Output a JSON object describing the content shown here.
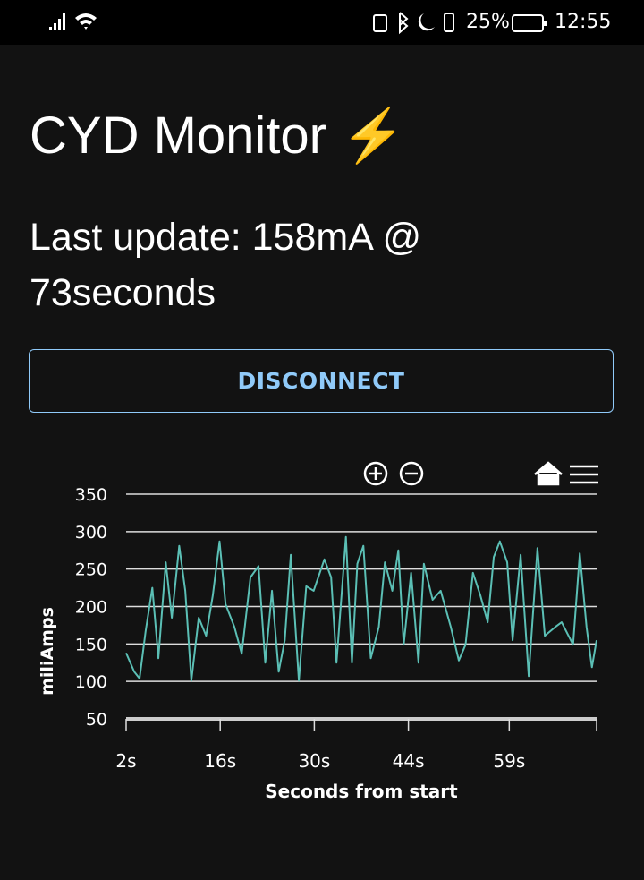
{
  "status_bar": {
    "battery": "25%",
    "time": "12:55"
  },
  "header": {
    "title": "CYD Monitor ⚡",
    "status": "Last update: 158mA @ 73seconds"
  },
  "button": {
    "label": "DISCONNECT"
  },
  "chart_data": {
    "type": "line",
    "xlabel": "Seconds from start",
    "ylabel": "miliAmps",
    "xlim": [
      2,
      72
    ],
    "ylim": [
      50,
      350
    ],
    "xticks": [
      {
        "value": 2,
        "label": "2s"
      },
      {
        "value": 16,
        "label": "16s"
      },
      {
        "value": 30,
        "label": "30s"
      },
      {
        "value": 44,
        "label": "44s"
      },
      {
        "value": 59,
        "label": "59s"
      }
    ],
    "yticks": [
      50,
      100,
      150,
      200,
      250,
      300,
      350
    ],
    "grid": true,
    "series": [
      {
        "color": "#5bbfb5",
        "x": [
          2,
          3.2,
          4,
          4.9,
          5.9,
          6.8,
          7.9,
          8.8,
          9.9,
          10.8,
          11.7,
          12.8,
          13.9,
          14.9,
          15.9,
          16.8,
          18.1,
          19.2,
          20.5,
          21.7,
          22.7,
          23.7,
          24.7,
          25.6,
          26.5,
          27.7,
          28.8,
          29.9,
          31.5,
          32.5,
          33.3,
          34.7,
          35.6,
          36.4,
          37.3,
          38.4,
          39.6,
          40.5,
          41.6,
          42.5,
          43.3,
          44.4,
          45.5,
          46.3,
          47.6,
          48.8,
          50.3,
          51.5,
          52.5,
          53.6,
          54.7,
          55.8,
          56.7,
          57.6,
          58.7,
          59.5,
          60.7,
          61.9,
          63.2,
          64.3,
          65.9,
          66.8,
          68.5,
          69.5,
          70.5,
          71.3,
          72
        ],
        "values": [
          138,
          113,
          104,
          167,
          225,
          131,
          259,
          185,
          281,
          221,
          101,
          185,
          161,
          215,
          287,
          203,
          173,
          137,
          239,
          254,
          125,
          221,
          113,
          155,
          269,
          101,
          227,
          221,
          263,
          239,
          125,
          293,
          125,
          257,
          281,
          131,
          173,
          259,
          221,
          275,
          149,
          245,
          125,
          257,
          209,
          221,
          173,
          128,
          149,
          245,
          215,
          179,
          266,
          287,
          259,
          155,
          269,
          107,
          278,
          161,
          173,
          179,
          149,
          271,
          173,
          119,
          155
        ]
      }
    ]
  }
}
